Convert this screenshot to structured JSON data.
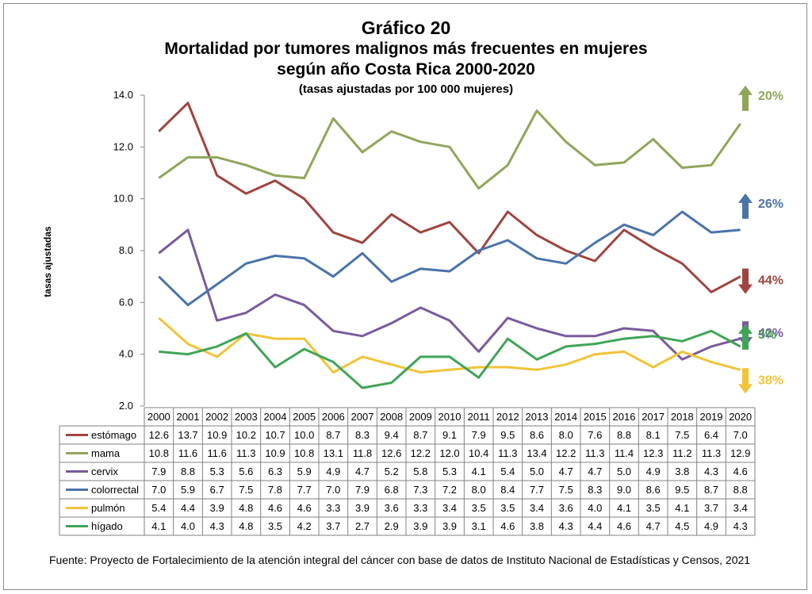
{
  "title": "Gráfico 20",
  "subtitle_1": "Mortalidad por tumores malignos más frecuentes en mujeres",
  "subtitle_2": "según año Costa Rica 2000-2020",
  "subtitle_3": "(tasas ajustadas por 100 000 mujeres)",
  "source": "Fuente:  Proyecto de Fortalecimiento de la atención integral del cáncer con base de datos de Instituto Nacional de Estadísticas y Censos, 2021",
  "chart_data": {
    "type": "line",
    "ylabel": "tasas ajustadas",
    "ylim": [
      2.0,
      14.0
    ],
    "yticks": [
      "2.0",
      "4.0",
      "6.0",
      "8.0",
      "10.0",
      "12.0",
      "14.0"
    ],
    "grid": false,
    "legend": "data-table",
    "categories": [
      "2000",
      "2001",
      "2002",
      "2003",
      "2004",
      "2005",
      "2006",
      "2007",
      "2008",
      "2009",
      "2010",
      "2011",
      "2012",
      "2013",
      "2014",
      "2015",
      "2016",
      "2017",
      "2018",
      "2019",
      "2020"
    ],
    "series": [
      {
        "name": "estómago",
        "color": "#A0433F",
        "values": [
          12.6,
          13.7,
          10.9,
          10.2,
          10.7,
          10.0,
          8.7,
          8.3,
          9.4,
          8.7,
          9.1,
          7.9,
          9.5,
          8.6,
          8.0,
          7.6,
          8.8,
          8.1,
          7.5,
          6.4,
          7.0
        ],
        "change": "44%",
        "direction": "down"
      },
      {
        "name": "mama",
        "color": "#8FA659",
        "values": [
          10.8,
          11.6,
          11.6,
          11.3,
          10.9,
          10.8,
          13.1,
          11.8,
          12.6,
          12.2,
          12.0,
          10.4,
          11.3,
          13.4,
          12.2,
          11.3,
          11.4,
          12.3,
          11.2,
          11.3,
          12.9
        ],
        "change": "20%",
        "direction": "up"
      },
      {
        "name": "cervix",
        "color": "#7A5A9E",
        "values": [
          7.9,
          8.8,
          5.3,
          5.6,
          6.3,
          5.9,
          4.9,
          4.7,
          5.2,
          5.8,
          5.3,
          4.1,
          5.4,
          5.0,
          4.7,
          4.7,
          5.0,
          4.9,
          3.8,
          4.3,
          4.6
        ],
        "change": "42%",
        "direction": "down"
      },
      {
        "name": "colorrectal",
        "color": "#4A73AA",
        "values": [
          7.0,
          5.9,
          6.7,
          7.5,
          7.8,
          7.7,
          7.0,
          7.9,
          6.8,
          7.3,
          7.2,
          8.0,
          8.4,
          7.7,
          7.5,
          8.3,
          9.0,
          8.6,
          9.5,
          8.7,
          8.8
        ],
        "change": "26%",
        "direction": "up"
      },
      {
        "name": "pulmón",
        "color": "#F2C338",
        "values": [
          5.4,
          4.4,
          3.9,
          4.8,
          4.6,
          4.6,
          3.3,
          3.9,
          3.6,
          3.3,
          3.4,
          3.5,
          3.5,
          3.4,
          3.6,
          4.0,
          4.1,
          3.5,
          4.1,
          3.7,
          3.4
        ],
        "change": "38%",
        "direction": "down"
      },
      {
        "name": "hígado",
        "color": "#3FA556",
        "values": [
          4.1,
          4.0,
          4.3,
          4.8,
          3.5,
          4.2,
          3.7,
          2.7,
          2.9,
          3.9,
          3.9,
          3.1,
          4.6,
          3.8,
          4.3,
          4.4,
          4.6,
          4.7,
          4.5,
          4.9,
          4.3
        ],
        "change": "5%",
        "direction": "up"
      }
    ]
  }
}
